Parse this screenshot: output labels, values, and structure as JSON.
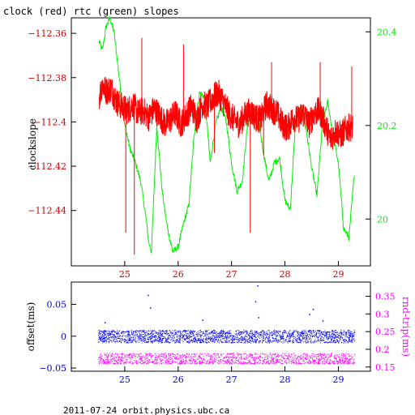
{
  "title": "clock (red) rtc (green) slopes",
  "footer": "2011-07-24 orbit.physics.ubc.ca",
  "colors": {
    "red": "#ff0000",
    "green": "#00ee00",
    "blue": "#0000ff",
    "magenta": "#ff00ff",
    "navy": "#0000cc",
    "darkred": "#cc0000"
  },
  "chart_data": [
    {
      "type": "line",
      "title": "clock (red) rtc (green) slopes",
      "ylabel": "clockslope",
      "xlim": [
        24.0,
        29.6
      ],
      "ylim": [
        -112.465,
        -112.353
      ],
      "y2lim": [
        19.9,
        20.43
      ],
      "x_ticks": [
        25,
        26,
        27,
        28,
        29
      ],
      "y_ticks": [
        -112.44,
        -112.42,
        -112.4,
        -112.38,
        -112.36
      ],
      "y_tick_labels": [
        "−112.44",
        "−112.42",
        "−112.4",
        "−112.38",
        "−112.36"
      ],
      "y2_ticks": [
        20,
        20.2,
        20.4
      ],
      "y2_tick_labels": [
        "20",
        "20.2",
        "20.4"
      ],
      "series": [
        {
          "name": "clock (red)",
          "axis": "left",
          "x": [
            24.52,
            24.58,
            24.65,
            24.75,
            24.85,
            24.95,
            25.05,
            25.15,
            25.25,
            25.35,
            25.45,
            25.55,
            25.65,
            25.75,
            25.85,
            25.95,
            26.05,
            26.15,
            26.25,
            26.35,
            26.45,
            26.55,
            26.65,
            26.75,
            26.85,
            26.95,
            27.05,
            27.15,
            27.25,
            27.35,
            27.45,
            27.55,
            27.65,
            27.75,
            27.85,
            27.95,
            28.05,
            28.15,
            28.25,
            28.35,
            28.45,
            28.55,
            28.65,
            28.75,
            28.85,
            28.95,
            29.05,
            29.15,
            29.27
          ],
          "y": [
            -112.389,
            -112.383,
            -112.386,
            -112.385,
            -112.391,
            -112.393,
            -112.395,
            -112.392,
            -112.396,
            -112.395,
            -112.398,
            -112.394,
            -112.397,
            -112.401,
            -112.399,
            -112.396,
            -112.401,
            -112.397,
            -112.393,
            -112.399,
            -112.392,
            -112.393,
            -112.389,
            -112.387,
            -112.391,
            -112.396,
            -112.399,
            -112.401,
            -112.397,
            -112.395,
            -112.398,
            -112.399,
            -112.392,
            -112.394,
            -112.396,
            -112.401,
            -112.403,
            -112.398,
            -112.399,
            -112.396,
            -112.401,
            -112.396,
            -112.395,
            -112.401,
            -112.408,
            -112.404,
            -112.406,
            -112.403,
            -112.402
          ]
        },
        {
          "name": "rtc (green)",
          "axis": "right",
          "x": [
            24.52,
            24.58,
            24.65,
            24.72,
            24.8,
            24.9,
            25.0,
            25.1,
            25.2,
            25.3,
            25.4,
            25.45,
            25.5,
            25.6,
            25.7,
            25.8,
            25.9,
            26.0,
            26.1,
            26.2,
            26.3,
            26.4,
            26.5,
            26.6,
            26.7,
            26.8,
            26.9,
            27.0,
            27.1,
            27.2,
            27.3,
            27.4,
            27.5,
            27.6,
            27.7,
            27.8,
            27.9,
            28.0,
            28.1,
            28.2,
            28.3,
            28.4,
            28.5,
            28.6,
            28.7,
            28.8,
            28.9,
            29.0,
            29.1,
            29.2,
            29.3
          ],
          "y": [
            20.38,
            20.36,
            20.41,
            20.43,
            20.4,
            20.3,
            20.2,
            20.15,
            20.12,
            20.08,
            20.0,
            19.95,
            19.93,
            20.2,
            20.06,
            19.98,
            19.93,
            19.94,
            19.99,
            20.03,
            20.18,
            20.27,
            20.26,
            20.12,
            20.2,
            20.24,
            20.21,
            20.12,
            20.06,
            20.08,
            20.2,
            20.24,
            20.22,
            20.14,
            20.08,
            20.12,
            20.13,
            20.04,
            20.02,
            20.21,
            20.24,
            20.19,
            20.11,
            20.05,
            20.2,
            20.25,
            20.18,
            20.12,
            19.98,
            19.96,
            20.1
          ]
        }
      ],
      "spikes": [
        {
          "x": 25.02,
          "y": -112.45
        },
        {
          "x": 25.18,
          "y": -112.46
        },
        {
          "x": 25.32,
          "y": -112.362
        },
        {
          "x": 26.1,
          "y": -112.365
        },
        {
          "x": 26.68,
          "y": -112.414
        },
        {
          "x": 27.35,
          "y": -112.45
        },
        {
          "x": 27.6,
          "y": -112.415
        },
        {
          "x": 27.75,
          "y": -112.373
        },
        {
          "x": 28.66,
          "y": -112.373
        },
        {
          "x": 29.25,
          "y": -112.375
        }
      ]
    },
    {
      "type": "scatter",
      "ylabel": "offset(ms)",
      "y2label": "rnd-trip(ms)",
      "xlim": [
        24.0,
        29.6
      ],
      "ylim": [
        -0.055,
        0.085
      ],
      "y2lim": [
        0.138,
        0.39
      ],
      "x_ticks": [
        25,
        26,
        27,
        28,
        29
      ],
      "y_ticks": [
        -0.05,
        0,
        0.05
      ],
      "y_tick_labels": [
        "−0.05",
        "0",
        "0.05"
      ],
      "y2_ticks": [
        0.15,
        0.2,
        0.25,
        0.3,
        0.35
      ],
      "y2_tick_labels": [
        "0.15",
        "0.2",
        "0.25",
        "0.3",
        "0.35"
      ],
      "series": [
        {
          "name": "offset",
          "axis": "left",
          "x_range": [
            24.5,
            29.3
          ],
          "y_band": [
            -0.01,
            0.01
          ]
        },
        {
          "name": "rnd-trip",
          "axis": "right",
          "x_range": [
            24.5,
            29.3
          ],
          "y_band": [
            0.16,
            0.19
          ]
        }
      ],
      "outliers": [
        {
          "series": "offset",
          "x": 25.43,
          "y": 0.065
        },
        {
          "series": "offset",
          "x": 25.47,
          "y": 0.045
        },
        {
          "series": "offset",
          "x": 26.45,
          "y": 0.026
        },
        {
          "series": "offset",
          "x": 27.48,
          "y": 0.08
        },
        {
          "series": "offset",
          "x": 27.44,
          "y": 0.055
        },
        {
          "series": "offset",
          "x": 27.5,
          "y": 0.03
        },
        {
          "series": "offset",
          "x": 28.45,
          "y": 0.035
        },
        {
          "series": "offset",
          "x": 28.52,
          "y": 0.043
        },
        {
          "series": "offset",
          "x": 24.62,
          "y": 0.022
        },
        {
          "series": "offset",
          "x": 28.7,
          "y": 0.025
        }
      ]
    }
  ]
}
